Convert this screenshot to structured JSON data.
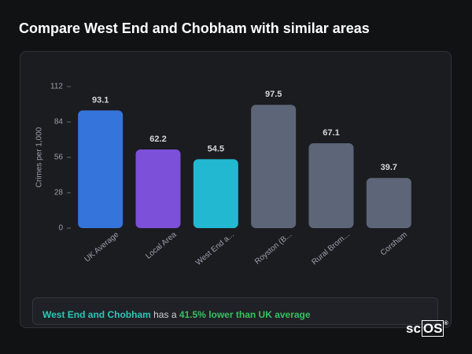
{
  "title": "Compare West End and Chobham with similar areas",
  "chart_data": {
    "type": "bar",
    "y_label": "Crimes per 1,000",
    "categories": [
      "UK Average",
      "Local Area",
      "West End a...",
      "Royston (B...",
      "Rural Brom...",
      "Corsham"
    ],
    "values": [
      93.1,
      62.2,
      54.5,
      97.5,
      67.1,
      39.7
    ],
    "colors": [
      "#3574db",
      "#7c50d8",
      "#22b8d1",
      "#5d6678",
      "#5d6678",
      "#5d6678"
    ],
    "ylim": [
      0,
      112
    ],
    "yticks": [
      0,
      28,
      56,
      84,
      112
    ]
  },
  "summary": {
    "area": "West End and Chobham",
    "middle": " has a ",
    "comparison": "41.5% lower than UK average"
  },
  "logo": {
    "prefix": "sc",
    "suffix": "OS",
    "mark": "®"
  }
}
